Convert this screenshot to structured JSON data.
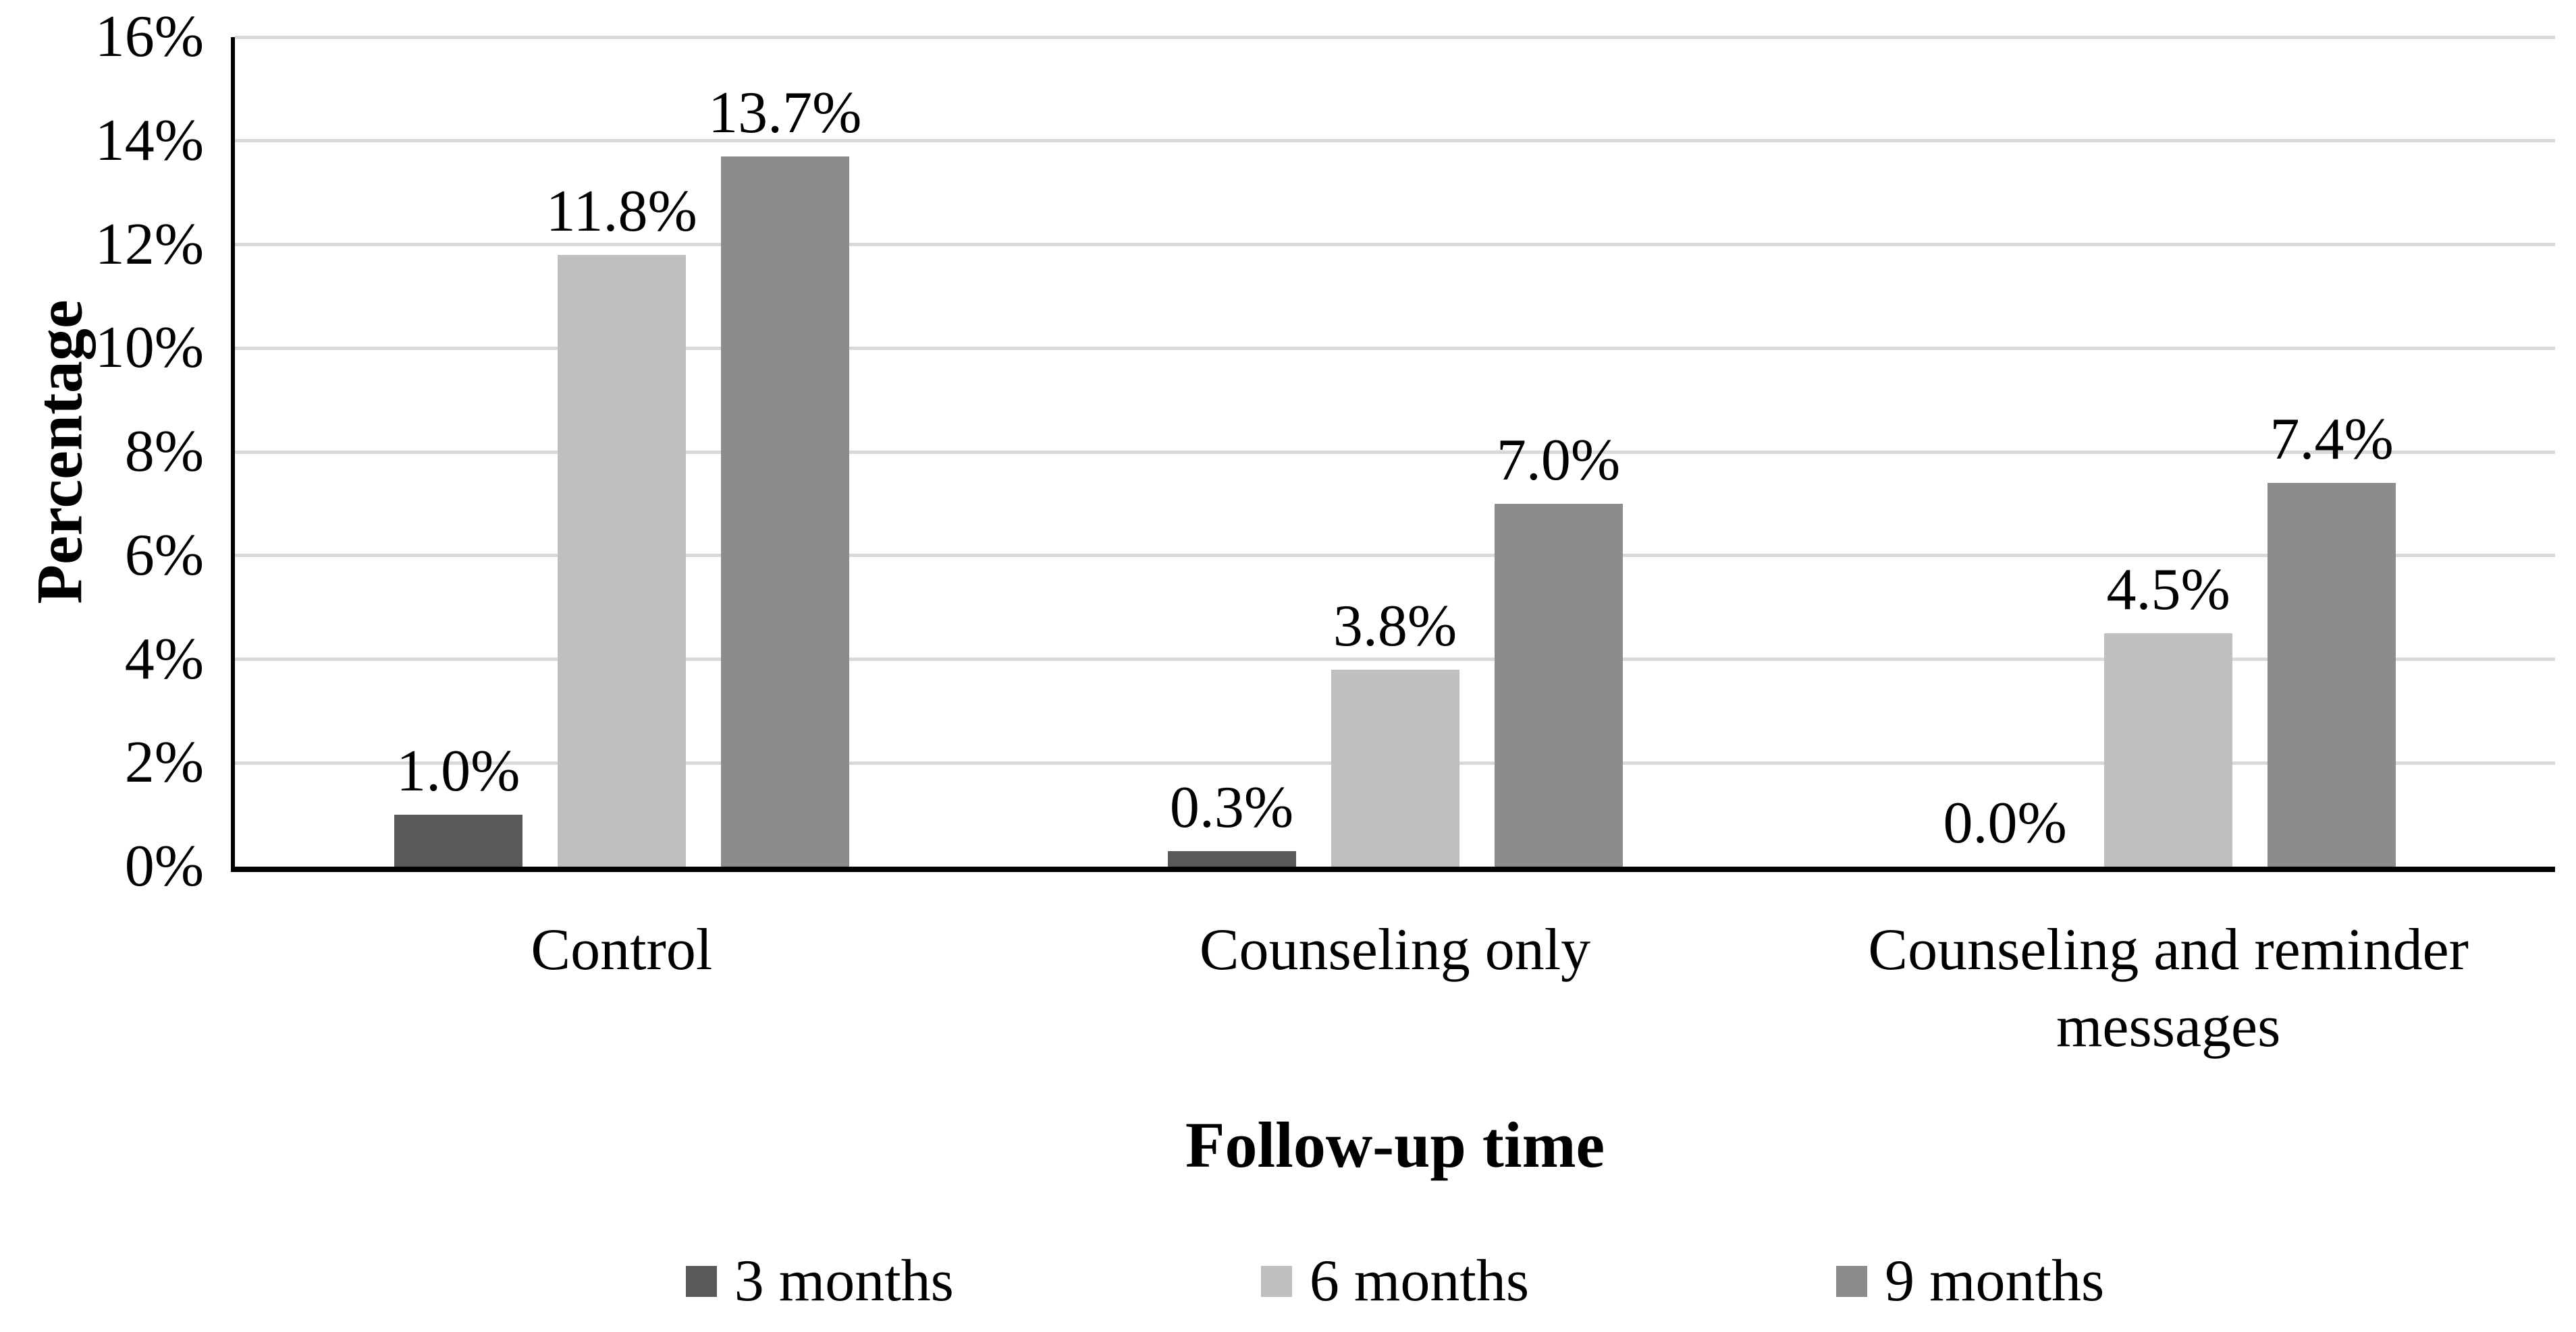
{
  "chart_data": {
    "type": "bar",
    "title": "",
    "xlabel": "Follow-up time",
    "ylabel": "Percentage",
    "categories": [
      "Control",
      "Counseling only",
      "Counseling and reminder\nmessages"
    ],
    "series": [
      {
        "name": "3 months",
        "color": "#595959",
        "values": [
          1.0,
          0.3,
          0.0
        ],
        "data_labels": [
          "1.0%",
          "0.3%",
          "0.0%"
        ]
      },
      {
        "name": "6 months",
        "color": "#BFBFBF",
        "values": [
          11.8,
          3.8,
          4.5
        ],
        "data_labels": [
          "11.8%",
          "3.8%",
          "4.5%"
        ]
      },
      {
        "name": "9 months",
        "color": "#8C8C8C",
        "values": [
          13.7,
          7.0,
          7.4
        ],
        "data_labels": [
          "13.7%",
          "7.0%",
          "7.4%"
        ]
      }
    ],
    "ylim": [
      0,
      16
    ],
    "ytick_step": 2,
    "ytick_labels": [
      "0%",
      "2%",
      "4%",
      "6%",
      "8%",
      "10%",
      "12%",
      "14%",
      "16%"
    ],
    "grid": true,
    "legend_position": "bottom",
    "colors": {
      "gridline": "#D9D9D9",
      "axis": "#000000",
      "text": "#000000",
      "background": "#FFFFFF"
    }
  }
}
